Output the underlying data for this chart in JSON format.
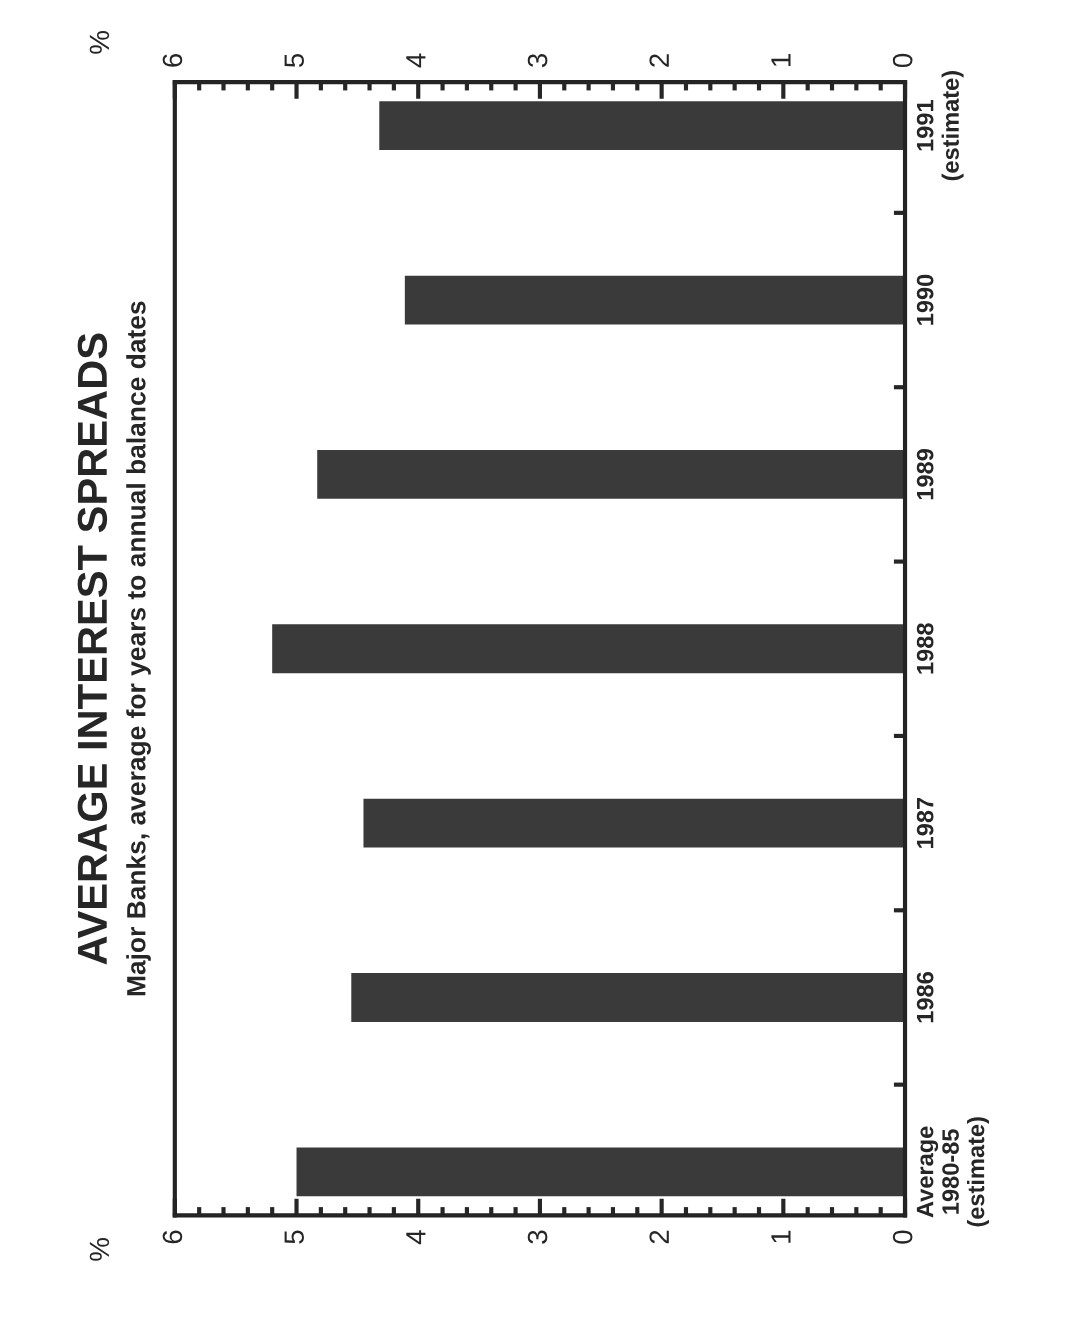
{
  "chart_data": {
    "type": "bar",
    "orientation": "horizontal",
    "title": "AVERAGE INTEREST SPREADS",
    "subtitle": "Major Banks, average for years to annual balance dates",
    "categories": [
      "1991\n(estimate)",
      "1990",
      "1989",
      "1988",
      "1987",
      "1986",
      "Average\n1980-85\n(estimate)"
    ],
    "values": [
      4.32,
      4.11,
      4.83,
      5.2,
      4.45,
      4.55,
      5.0
    ],
    "color": "#3a3a3a",
    "xlim": [
      6,
      0
    ],
    "xticks": [
      0,
      1,
      2,
      3,
      4,
      5,
      6
    ],
    "x2lim": [
      6,
      0
    ],
    "x2ticks": [
      0,
      1,
      2,
      3,
      4,
      5,
      6
    ],
    "annotations": [
      "%",
      "%"
    ],
    "grid": false,
    "legend": false
  }
}
